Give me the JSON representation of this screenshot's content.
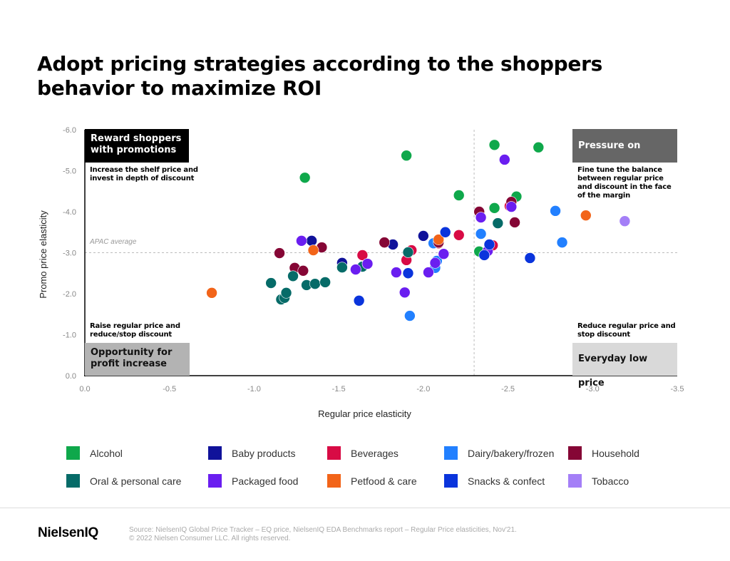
{
  "title": "Adopt pricing strategies according to the shoppers behavior to maximize ROI",
  "quadrants": {
    "top_left": {
      "label": "Reward shoppers with promotions",
      "description": "Increase the shelf price and invest in depth of discount"
    },
    "top_right": {
      "label": "Pressure on profit",
      "description": "Fine tune the balance between regular price and discount in the face of the margin"
    },
    "bottom_left": {
      "label": "Opportunity for profit increase",
      "description": "Raise regular price and reduce/stop discount"
    },
    "bottom_right": {
      "label": "Everyday low price",
      "description": "Reduce regular price and stop discount"
    }
  },
  "reference_line_label": "APAC average",
  "footer": {
    "logo": "NielsenIQ",
    "source": "Source: NielsenIQ Global Price Tracker – EQ price, NielsenIQ EDA Benchmarks report – Regular Price elasticities, Nov'21.",
    "copyright": "© 2022 Nielsen Consumer LLC. All rights reserved."
  },
  "chart_data": {
    "type": "scatter",
    "title": "Adopt pricing strategies according to the shoppers behavior to maximize ROI",
    "xlabel": "Regular price elasticity",
    "ylabel": "Promo price elasticity",
    "xlim": [
      0.0,
      -3.5
    ],
    "ylim": [
      0.0,
      -6.0
    ],
    "xticks": [
      "0.0",
      "-0.5",
      "-1.0",
      "-1.5",
      "-2.0",
      "-2.5",
      "-3.0",
      "-3.5"
    ],
    "yticks": [
      "0.0",
      "-1.0",
      "-2.0",
      "-3.0",
      "-4.0",
      "-5.0",
      "-6.0"
    ],
    "xtick_values": [
      0,
      -0.5,
      -1,
      -1.5,
      -2,
      -2.5,
      -3,
      -3.5
    ],
    "ytick_values": [
      0,
      -1,
      -2,
      -3,
      -4,
      -5,
      -6
    ],
    "reference_lines": {
      "x": -2.3,
      "y": -3.0,
      "label": "APAC average"
    },
    "grid": false,
    "legend_position": "bottom",
    "series": [
      {
        "name": "Alcohol",
        "color": "#0fa84b",
        "points": [
          [
            -1.3,
            -4.83
          ],
          [
            -1.9,
            -5.37
          ],
          [
            -2.21,
            -4.4
          ],
          [
            -2.42,
            -5.63
          ],
          [
            -2.68,
            -5.57
          ],
          [
            -2.55,
            -4.37
          ],
          [
            -2.42,
            -4.09
          ],
          [
            -2.33,
            -3.03
          ]
        ]
      },
      {
        "name": "Baby products",
        "color": "#10129a",
        "points": [
          [
            -1.34,
            -3.29
          ],
          [
            -1.82,
            -3.2
          ],
          [
            -2.0,
            -3.41
          ],
          [
            -1.52,
            -2.75
          ]
        ]
      },
      {
        "name": "Beverages",
        "color": "#d80b45",
        "points": [
          [
            -1.64,
            -2.94
          ],
          [
            -2.21,
            -3.43
          ],
          [
            -1.9,
            -2.82
          ],
          [
            -1.93,
            -3.06
          ],
          [
            -2.09,
            -3.23
          ],
          [
            -2.41,
            -3.18
          ],
          [
            -2.51,
            -4.14
          ]
        ]
      },
      {
        "name": "Dairy/bakery/frozen",
        "color": "#2280ff",
        "points": [
          [
            -2.78,
            -4.02
          ],
          [
            -2.82,
            -3.25
          ],
          [
            -2.34,
            -3.46
          ],
          [
            -1.92,
            -1.46
          ],
          [
            -2.07,
            -2.63
          ],
          [
            -2.06,
            -3.23
          ],
          [
            -2.08,
            -2.8
          ]
        ]
      },
      {
        "name": "Household",
        "color": "#850635",
        "points": [
          [
            -1.15,
            -2.99
          ],
          [
            -1.24,
            -2.63
          ],
          [
            -1.29,
            -2.56
          ],
          [
            -1.4,
            -3.13
          ],
          [
            -1.77,
            -3.25
          ],
          [
            -2.33,
            -4.0
          ],
          [
            -2.52,
            -4.24
          ],
          [
            -2.54,
            -3.74
          ],
          [
            -2.09,
            -3.25
          ]
        ]
      },
      {
        "name": "Oral & personal care",
        "color": "#066b68",
        "points": [
          [
            -1.1,
            -2.26
          ],
          [
            -1.16,
            -1.86
          ],
          [
            -1.18,
            -1.9
          ],
          [
            -1.19,
            -2.02
          ],
          [
            -1.23,
            -2.43
          ],
          [
            -1.31,
            -2.21
          ],
          [
            -1.36,
            -2.24
          ],
          [
            -1.42,
            -2.28
          ],
          [
            -1.52,
            -2.64
          ],
          [
            -1.64,
            -2.66
          ],
          [
            -1.91,
            -3.01
          ],
          [
            -2.44,
            -3.72
          ],
          [
            -1.67,
            -2.73
          ]
        ]
      },
      {
        "name": "Packaged food",
        "color": "#6a1ef0",
        "points": [
          [
            -1.28,
            -3.29
          ],
          [
            -1.6,
            -2.59
          ],
          [
            -1.67,
            -2.73
          ],
          [
            -1.84,
            -2.52
          ],
          [
            -1.89,
            -2.03
          ],
          [
            -2.03,
            -2.52
          ],
          [
            -2.07,
            -2.75
          ],
          [
            -2.12,
            -2.97
          ],
          [
            -2.34,
            -3.86
          ],
          [
            -2.48,
            -5.27
          ],
          [
            -2.52,
            -4.12
          ],
          [
            -2.38,
            -3.04
          ]
        ]
      },
      {
        "name": "Petfood & care",
        "color": "#f26419",
        "points": [
          [
            -0.75,
            -2.02
          ],
          [
            -1.35,
            -3.06
          ],
          [
            -2.09,
            -3.32
          ],
          [
            -2.96,
            -3.91
          ]
        ]
      },
      {
        "name": "Snacks & confect",
        "color": "#0a34dc",
        "points": [
          [
            -1.62,
            -1.83
          ],
          [
            -1.91,
            -2.5
          ],
          [
            -2.13,
            -3.5
          ],
          [
            -2.36,
            -2.94
          ],
          [
            -2.39,
            -3.2
          ],
          [
            -2.63,
            -2.87
          ]
        ]
      },
      {
        "name": "Tobacco",
        "color": "#a47ff7",
        "points": [
          [
            -3.19,
            -3.77
          ]
        ]
      }
    ]
  }
}
